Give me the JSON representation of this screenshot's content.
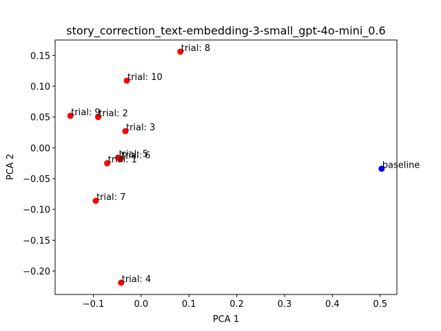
{
  "chart_data": {
    "type": "scatter",
    "title": "story_correction_text-embedding-3-small_gpt-4o-mini_0.6",
    "xlabel": "PCA 1",
    "ylabel": "PCA 2",
    "xlim": [
      -0.18,
      0.535
    ],
    "ylim": [
      -0.238,
      0.175
    ],
    "xticks": [
      -0.1,
      0.0,
      0.1,
      0.2,
      0.3,
      0.4,
      0.5
    ],
    "xtick_labels": [
      "−0.1",
      "0.0",
      "0.1",
      "0.2",
      "0.3",
      "0.4",
      "0.5"
    ],
    "yticks": [
      0.15,
      0.1,
      0.05,
      0.0,
      -0.05,
      -0.1,
      -0.15,
      -0.2
    ],
    "ytick_labels": [
      "0.15",
      "0.10",
      "0.05",
      "0.00",
      "−0.05",
      "−0.10",
      "−0.15",
      "−0.20"
    ],
    "grid": false,
    "points": [
      {
        "label": "trial: 8",
        "x": 0.082,
        "y": 0.156,
        "color": "#ff0000"
      },
      {
        "label": "trial: 10",
        "x": -0.03,
        "y": 0.109,
        "color": "#ff0000"
      },
      {
        "label": "trial: 9",
        "x": -0.148,
        "y": 0.052,
        "color": "#ff0000"
      },
      {
        "label": "trial: 2",
        "x": -0.09,
        "y": 0.05,
        "color": "#ff0000"
      },
      {
        "label": "trial: 3",
        "x": -0.033,
        "y": 0.027,
        "color": "#ff0000"
      },
      {
        "label": "trial: 5",
        "x": -0.048,
        "y": -0.016,
        "color": "#ff0000"
      },
      {
        "label": "trial: 6",
        "x": -0.043,
        "y": -0.018,
        "color": "#ff0000"
      },
      {
        "label": "trial: 1",
        "x": -0.071,
        "y": -0.025,
        "color": "#ff0000"
      },
      {
        "label": "trial: 7",
        "x": -0.095,
        "y": -0.086,
        "color": "#ff0000"
      },
      {
        "label": "trial: 4",
        "x": -0.042,
        "y": -0.219,
        "color": "#ff0000"
      },
      {
        "label": "baseline",
        "x": 0.503,
        "y": -0.034,
        "color": "#0000ff"
      }
    ]
  }
}
